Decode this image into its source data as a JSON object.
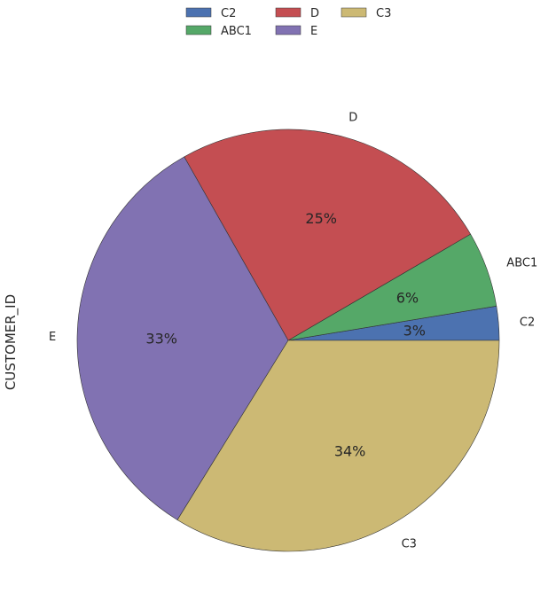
{
  "chart_data": {
    "type": "pie",
    "ylabel": "CUSTOMER_ID",
    "legend_position": "top-center",
    "start_angle_deg": 0,
    "direction": "counterclockwise",
    "slices": [
      {
        "label": "C2",
        "value": 2.6,
        "pct_label": "3%",
        "color": "#4c72b0"
      },
      {
        "label": "ABC1",
        "value": 5.8,
        "pct_label": "6%",
        "color": "#55a868"
      },
      {
        "label": "D",
        "value": 24.8,
        "pct_label": "25%",
        "color": "#c44e52"
      },
      {
        "label": "E",
        "value": 33.0,
        "pct_label": "33%",
        "color": "#8172b2"
      },
      {
        "label": "C3",
        "value": 33.8,
        "pct_label": "34%",
        "color": "#ccb974"
      }
    ],
    "legend": {
      "columns": 3,
      "items": [
        "C2",
        "ABC1",
        "D",
        "E",
        "C3"
      ]
    }
  }
}
